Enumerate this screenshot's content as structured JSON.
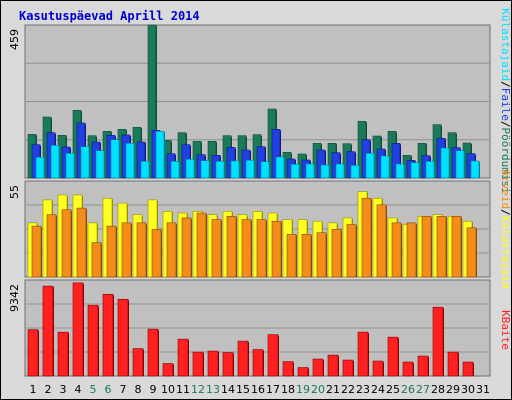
{
  "title": "Kasutuspäevad Aprill 2014",
  "colors": {
    "frame_bg": "#d9d9d9",
    "panel_bg": "#c0c0c0",
    "gridline": "#909090",
    "title": "#0000cc",
    "weekend_tick": "#1a7a5a",
    "separator": "#000000"
  },
  "chart_data": [
    {
      "type": "bar",
      "panel": "top",
      "ymax_label": "459",
      "ylim": [
        0,
        459
      ],
      "grid": true,
      "legend": "right vertical",
      "categories": [
        "1",
        "2",
        "3",
        "4",
        "5",
        "6",
        "7",
        "8",
        "9",
        "10",
        "11",
        "12",
        "13",
        "14",
        "15",
        "16",
        "17",
        "18",
        "19",
        "20",
        "21",
        "22",
        "23",
        "24",
        "25",
        "26",
        "27",
        "28",
        "29",
        "30",
        "31"
      ],
      "weekend_days": [
        "5",
        "6",
        "12",
        "13",
        "19",
        "20",
        "26",
        "27"
      ],
      "legend_separator": "/",
      "series": [
        {
          "name": "Pöördumisi",
          "color": "#1a7a5a",
          "values": [
            131,
            183,
            128,
            203,
            127,
            140,
            146,
            152,
            459,
            113,
            136,
            110,
            110,
            127,
            127,
            130,
            207,
            77,
            72,
            104,
            104,
            103,
            170,
            126,
            140,
            68,
            104,
            160,
            136,
            105,
            0
          ]
        },
        {
          "name": "Faile",
          "color": "#2040e0",
          "values": [
            100,
            136,
            93,
            165,
            108,
            128,
            129,
            108,
            143,
            73,
            100,
            70,
            68,
            92,
            84,
            94,
            146,
            57,
            54,
            84,
            76,
            79,
            115,
            87,
            104,
            53,
            67,
            119,
            91,
            73,
            0
          ]
        },
        {
          "name": "Külastajaid",
          "color": "#00e0ff",
          "values": [
            62,
            98,
            74,
            94,
            82,
            115,
            104,
            50,
            140,
            50,
            56,
            52,
            50,
            51,
            53,
            49,
            63,
            41,
            42,
            39,
            42,
            38,
            74,
            66,
            42,
            46,
            50,
            90,
            82,
            51,
            0
          ]
        }
      ]
    },
    {
      "type": "bar",
      "panel": "middle",
      "ymax_label": "55",
      "ylim": [
        0,
        55
      ],
      "grid": true,
      "categories": [
        "1",
        "2",
        "3",
        "4",
        "5",
        "6",
        "7",
        "8",
        "9",
        "10",
        "11",
        "12",
        "13",
        "14",
        "15",
        "16",
        "17",
        "18",
        "19",
        "20",
        "21",
        "22",
        "23",
        "24",
        "25",
        "26",
        "27",
        "28",
        "29",
        "30",
        "31"
      ],
      "series": [
        {
          "name": "Külastajaid",
          "color": "#ffff20",
          "values": [
            33,
            47,
            50,
            50,
            33,
            48,
            45,
            38,
            47,
            40,
            39,
            40,
            38,
            40,
            38,
            40,
            39,
            35,
            35,
            34,
            33,
            36,
            52,
            48,
            36,
            32,
            37,
            38,
            37,
            34,
            0
          ]
        },
        {
          "name": "Arveid",
          "color": "#f28c1a",
          "values": [
            31,
            38,
            41,
            42,
            21,
            31,
            33,
            33,
            29,
            33,
            36,
            39,
            35,
            37,
            35,
            35,
            34,
            26,
            26,
            27,
            29,
            32,
            48,
            44,
            33,
            33,
            37,
            37,
            37,
            30,
            0
          ]
        }
      ]
    },
    {
      "type": "bar",
      "panel": "bottom",
      "ymax_label": "9342",
      "ylim": [
        0,
        9342
      ],
      "grid": true,
      "categories": [
        "1",
        "2",
        "3",
        "4",
        "5",
        "6",
        "7",
        "8",
        "9",
        "10",
        "11",
        "12",
        "13",
        "14",
        "15",
        "16",
        "17",
        "18",
        "19",
        "20",
        "21",
        "22",
        "23",
        "24",
        "25",
        "26",
        "27",
        "28",
        "29",
        "30",
        "31"
      ],
      "series": [
        {
          "name": "KBaite",
          "color": "#ff2020",
          "values": [
            4650,
            9020,
            4400,
            9342,
            7100,
            8200,
            7700,
            2750,
            4700,
            1250,
            3700,
            2400,
            2500,
            2350,
            3500,
            2650,
            4150,
            1450,
            850,
            1700,
            2100,
            1600,
            4400,
            1500,
            3900,
            1400,
            2000,
            6900,
            2400,
            1400,
            0
          ]
        }
      ]
    }
  ]
}
